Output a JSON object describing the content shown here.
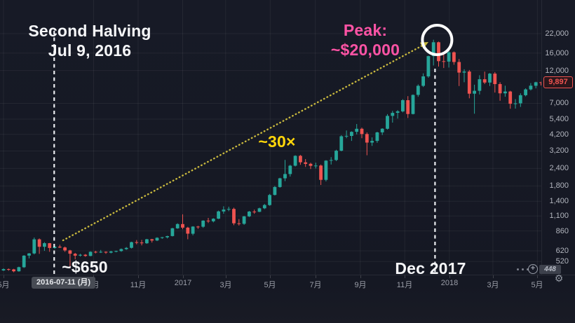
{
  "annotations": {
    "halving_title": "Second Halving",
    "halving_date": "Jul 9, 2016",
    "peak_title": "Peak:",
    "peak_value": "~$20,000",
    "multiplier": "~30×",
    "halving_price": "~$650",
    "peak_date_label": "Dec 2017"
  },
  "price_label": {
    "value": "9,897"
  },
  "date_tooltip": {
    "value": "2016-07-11 (月)"
  },
  "controls": {
    "add_label": "+",
    "settings_glyph": "⚙",
    "axis_bottom_badge": "448"
  },
  "colors": {
    "background": "#171a26",
    "up": "#26a69a",
    "down": "#ef5350",
    "grid": "rgba(255,255,255,0.06)",
    "annotation_white": "#f6f7f9",
    "annotation_pink": "#ff53a5",
    "annotation_yellow": "#ffd60a",
    "arrow": "#c9b93e",
    "axis_text": "#b2b5be"
  },
  "chart_data": {
    "type": "candlestick",
    "interval": "1W",
    "scale": "log",
    "unit": "USD",
    "x_start": "2016-05",
    "x_end": "2018-05",
    "y_range": [
      436,
      22000
    ],
    "price_ticks": [
      {
        "label": "22,000",
        "value": 22000
      },
      {
        "label": "16,000",
        "value": 16000
      },
      {
        "label": "12,000",
        "value": 12000
      },
      {
        "label": "7,000",
        "value": 7000
      },
      {
        "label": "5,400",
        "value": 5400
      },
      {
        "label": "4,200",
        "value": 4200
      },
      {
        "label": "3,200",
        "value": 3200
      },
      {
        "label": "2,400",
        "value": 2400
      },
      {
        "label": "1,800",
        "value": 1800
      },
      {
        "label": "1,400",
        "value": 1400
      },
      {
        "label": "1,100",
        "value": 1100
      },
      {
        "label": "860",
        "value": 860
      },
      {
        "label": "620",
        "value": 620
      },
      {
        "label": "520",
        "value": 520
      }
    ],
    "time_ticks": [
      {
        "label": "5月",
        "week": 0
      },
      {
        "label": "9月",
        "week": 17.6
      },
      {
        "label": "11月",
        "week": 26.3
      },
      {
        "label": "2017",
        "week": 35.0
      },
      {
        "label": "3月",
        "week": 43.4
      },
      {
        "label": "5月",
        "week": 52.1
      },
      {
        "label": "7月",
        "week": 60.9
      },
      {
        "label": "9月",
        "week": 69.7
      },
      {
        "label": "11月",
        "week": 78.4
      },
      {
        "label": "2018",
        "week": 87.1
      },
      {
        "label": "3月",
        "week": 95.6
      },
      {
        "label": "5月",
        "week": 104.3
      }
    ],
    "events": [
      {
        "name": "second-halving",
        "week": 9.9,
        "price": 650
      },
      {
        "name": "peak",
        "week": 84.3,
        "price": 19900
      },
      {
        "name": "gain_multiple",
        "value": "~30×"
      }
    ],
    "last_close": 9897,
    "candles_ohlc": [
      [
        449,
        465,
        445,
        459
      ],
      [
        459,
        464,
        447,
        457
      ],
      [
        457,
        461,
        436,
        443
      ],
      [
        443,
        478,
        440,
        474
      ],
      [
        474,
        578,
        468,
        573
      ],
      [
        573,
        598,
        548,
        594
      ],
      [
        594,
        772,
        585,
        749
      ],
      [
        749,
        760,
        590,
        663
      ],
      [
        663,
        715,
        620,
        703
      ],
      [
        703,
        705,
        610,
        650
      ],
      [
        650,
        680,
        640,
        664
      ],
      [
        664,
        685,
        650,
        655
      ],
      [
        655,
        665,
        610,
        624
      ],
      [
        624,
        630,
        465,
        591
      ],
      [
        591,
        600,
        540,
        573
      ],
      [
        573,
        590,
        565,
        581
      ],
      [
        581,
        588,
        562,
        570
      ],
      [
        570,
        615,
        567,
        610
      ],
      [
        610,
        620,
        595,
        607
      ],
      [
        607,
        629,
        598,
        610
      ],
      [
        610,
        615,
        590,
        602
      ],
      [
        602,
        620,
        595,
        614
      ],
      [
        614,
        622,
        605,
        618
      ],
      [
        618,
        645,
        610,
        638
      ],
      [
        638,
        660,
        630,
        651
      ],
      [
        651,
        720,
        645,
        715
      ],
      [
        715,
        740,
        690,
        711
      ],
      [
        711,
        742,
        678,
        702
      ],
      [
        702,
        755,
        696,
        750
      ],
      [
        750,
        755,
        710,
        735
      ],
      [
        735,
        775,
        728,
        768
      ],
      [
        768,
        780,
        755,
        775
      ],
      [
        775,
        795,
        760,
        790
      ],
      [
        790,
        905,
        785,
        898
      ],
      [
        898,
        975,
        890,
        963
      ],
      [
        963,
        1130,
        885,
        908
      ],
      [
        908,
        920,
        750,
        822
      ],
      [
        822,
        930,
        800,
        924
      ],
      [
        924,
        935,
        890,
        921
      ],
      [
        921,
        1025,
        905,
        1018
      ],
      [
        1018,
        1065,
        980,
        1008
      ],
      [
        1008,
        1060,
        990,
        1051
      ],
      [
        1051,
        1200,
        1045,
        1185
      ],
      [
        1185,
        1290,
        1140,
        1222
      ],
      [
        1222,
        1280,
        1190,
        1234
      ],
      [
        1234,
        1260,
        945,
        975
      ],
      [
        975,
        1045,
        940,
        966
      ],
      [
        966,
        1100,
        950,
        1092
      ],
      [
        1092,
        1195,
        1080,
        1181
      ],
      [
        1181,
        1220,
        1140,
        1177
      ],
      [
        1177,
        1260,
        1170,
        1247
      ],
      [
        1247,
        1340,
        1230,
        1316
      ],
      [
        1316,
        1580,
        1300,
        1553
      ],
      [
        1553,
        1800,
        1540,
        1769
      ],
      [
        1769,
        2060,
        1750,
        2041
      ],
      [
        2041,
        2760,
        1950,
        2189
      ],
      [
        2189,
        2550,
        2100,
        2511
      ],
      [
        2511,
        2980,
        2480,
        2953
      ],
      [
        2953,
        3000,
        2550,
        2655
      ],
      [
        2655,
        2800,
        2460,
        2590
      ],
      [
        2590,
        2640,
        2380,
        2506
      ],
      [
        2506,
        2640,
        2400,
        2518
      ],
      [
        2518,
        2560,
        1830,
        1992
      ],
      [
        1992,
        2750,
        1940,
        2730
      ],
      [
        2730,
        2890,
        2560,
        2757
      ],
      [
        2757,
        3260,
        2710,
        3213
      ],
      [
        3213,
        4150,
        3180,
        4073
      ],
      [
        4073,
        4480,
        3950,
        4100
      ],
      [
        4100,
        4420,
        3775,
        4382
      ],
      [
        4382,
        4980,
        4200,
        4605
      ],
      [
        4605,
        4700,
        3950,
        4226
      ],
      [
        4226,
        4340,
        2980,
        3672
      ],
      [
        3672,
        4000,
        3480,
        3775
      ],
      [
        3775,
        4390,
        3660,
        4341
      ],
      [
        4341,
        4650,
        4160,
        4611
      ],
      [
        4611,
        5860,
        4550,
        5697
      ],
      [
        5697,
        6180,
        5100,
        5984
      ],
      [
        5984,
        6260,
        5450,
        6133
      ],
      [
        6133,
        7500,
        6030,
        7371
      ],
      [
        7371,
        7880,
        5500,
        5878
      ],
      [
        5878,
        8100,
        5830,
        8038
      ],
      [
        8038,
        9550,
        7800,
        9330
      ],
      [
        9330,
        11450,
        9150,
        10900
      ],
      [
        10900,
        15300,
        10650,
        15200
      ],
      [
        15200,
        19900,
        13050,
        19100
      ],
      [
        19100,
        19300,
        12800,
        14000
      ],
      [
        14000,
        16100,
        12500,
        13900
      ],
      [
        13900,
        17200,
        12600,
        16200
      ],
      [
        16200,
        16400,
        13200,
        13800
      ],
      [
        13800,
        14500,
        9300,
        11600
      ],
      [
        11600,
        12250,
        9900,
        11800
      ],
      [
        11800,
        12100,
        7600,
        8200
      ],
      [
        8200,
        9500,
        5900,
        8600
      ],
      [
        8600,
        11100,
        8100,
        10400
      ],
      [
        10400,
        11790,
        9600,
        9850
      ],
      [
        9850,
        11500,
        9300,
        11400
      ],
      [
        11400,
        11700,
        8350,
        9600
      ],
      [
        9600,
        9900,
        7300,
        8250
      ],
      [
        8250,
        9350,
        7800,
        8500
      ],
      [
        8500,
        8600,
        6400,
        6950
      ],
      [
        6950,
        7500,
        6420,
        7000
      ],
      [
        7000,
        8250,
        6600,
        8000
      ],
      [
        8000,
        8950,
        7850,
        8800
      ],
      [
        8800,
        9760,
        8650,
        9350
      ],
      [
        9350,
        9990,
        8950,
        9900
      ],
      [
        9900,
        9960,
        9380,
        9897
      ]
    ]
  }
}
